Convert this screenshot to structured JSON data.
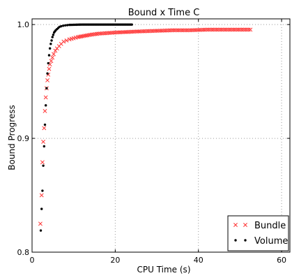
{
  "chart_data": {
    "type": "scatter",
    "title": "Bound x Time C",
    "xlabel": "CPU Time (s)",
    "ylabel": "Bound Progress",
    "xlim": [
      0,
      62
    ],
    "ylim": [
      0.8,
      1.005
    ],
    "xticks": [
      0,
      20,
      40,
      60
    ],
    "yticks": [
      0.8,
      0.9,
      1.0
    ],
    "xtick_labels": [
      "0",
      "20",
      "40",
      "60"
    ],
    "ytick_labels": [
      "0.8",
      "0.9",
      "1.0"
    ],
    "grid": true,
    "legend_position": "bottom-right",
    "colors": {
      "Bundle": "#ff3333",
      "Volume": "#000000"
    },
    "series": [
      {
        "name": "Bundle",
        "marker": "x",
        "x": [
          2.0,
          2.3,
          2.5,
          2.7,
          2.9,
          3.1,
          3.3,
          3.5,
          3.7,
          3.9,
          4.1,
          4.3,
          4.6,
          4.9,
          5.2,
          5.6,
          6.0,
          6.5,
          7.0,
          7.6,
          8.3,
          9.0,
          10.0,
          11.0,
          12.5,
          14.0,
          16.0,
          18.0,
          20.0,
          23.0,
          26.0,
          30.0,
          34.0,
          38.0,
          42.0,
          46.0,
          50.0,
          52.5
        ],
        "y": [
          0.825,
          0.85,
          0.879,
          0.897,
          0.909,
          0.924,
          0.936,
          0.944,
          0.951,
          0.956,
          0.961,
          0.965,
          0.968,
          0.971,
          0.974,
          0.977,
          0.979,
          0.981,
          0.983,
          0.985,
          0.986,
          0.987,
          0.988,
          0.989,
          0.99,
          0.991,
          0.992,
          0.9925,
          0.993,
          0.9935,
          0.994,
          0.9945,
          0.995,
          0.995,
          0.9955,
          0.9955,
          0.9955,
          0.9955
        ]
      },
      {
        "name": "Volume",
        "marker": "dot",
        "x": [
          2.1,
          2.3,
          2.5,
          2.7,
          2.9,
          3.1,
          3.3,
          3.5,
          3.7,
          3.9,
          4.1,
          4.3,
          4.5,
          4.7,
          4.9,
          5.1,
          5.3,
          5.5,
          5.7,
          6.0,
          6.3,
          6.6,
          7.0,
          7.5,
          8.0,
          8.5,
          9.0,
          10.0,
          11.0,
          12.0,
          14.0,
          16.0,
          18.0,
          20.0,
          22.0,
          24.0
        ],
        "y": [
          0.819,
          0.838,
          0.854,
          0.876,
          0.893,
          0.912,
          0.929,
          0.944,
          0.957,
          0.966,
          0.973,
          0.979,
          0.983,
          0.986,
          0.989,
          0.991,
          0.993,
          0.994,
          0.995,
          0.996,
          0.997,
          0.998,
          0.9985,
          0.999,
          0.9993,
          0.9995,
          0.9997,
          0.9998,
          0.9999,
          1.0,
          1.0,
          1.0,
          1.0,
          1.0,
          1.0,
          1.0
        ]
      }
    ]
  }
}
